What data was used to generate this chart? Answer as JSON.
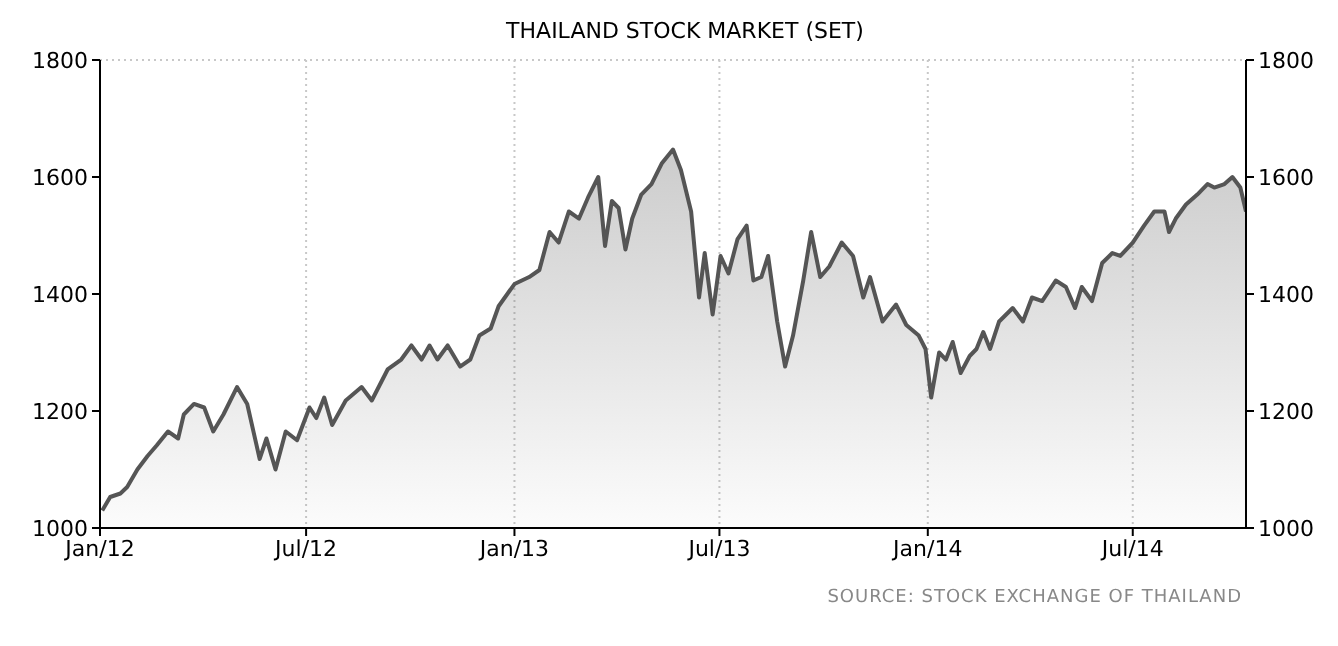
{
  "chart_data": {
    "type": "area",
    "title": "THAILAND STOCK MARKET (SET)",
    "annotations": [
      "SOURCE: STOCK EXCHANGE OF THAILAND"
    ],
    "series": [
      {
        "color": "#555555",
        "x": [
          "2012-01-03",
          "2012-01-10",
          "2012-01-19",
          "2012-01-25",
          "2012-02-03",
          "2012-02-12",
          "2012-02-20",
          "2012-03-01",
          "2012-03-10",
          "2012-03-15",
          "2012-03-24",
          "2012-04-02",
          "2012-04-10",
          "2012-04-19",
          "2012-05-01",
          "2012-05-10",
          "2012-05-21",
          "2012-05-27",
          "2012-06-04",
          "2012-06-13",
          "2012-06-23",
          "2012-07-04",
          "2012-07-10",
          "2012-07-17",
          "2012-07-24",
          "2012-08-05",
          "2012-08-19",
          "2012-08-28",
          "2012-09-11",
          "2012-09-23",
          "2012-10-02",
          "2012-10-11",
          "2012-10-18",
          "2012-10-25",
          "2012-11-03",
          "2012-11-14",
          "2012-11-23",
          "2012-12-01",
          "2012-12-11",
          "2012-12-18",
          "2013-01-01",
          "2013-01-14",
          "2013-01-23",
          "2013-02-01",
          "2013-02-09",
          "2013-02-18",
          "2013-02-27",
          "2013-03-07",
          "2013-03-16",
          "2013-03-22",
          "2013-03-28",
          "2013-04-03",
          "2013-04-09",
          "2013-04-15",
          "2013-04-23",
          "2013-05-02",
          "2013-05-11",
          "2013-05-21",
          "2013-05-28",
          "2013-06-06",
          "2013-06-13",
          "2013-06-18",
          "2013-06-25",
          "2013-07-02",
          "2013-07-09",
          "2013-07-17",
          "2013-07-25",
          "2013-07-31",
          "2013-08-07",
          "2013-08-13",
          "2013-08-21",
          "2013-08-28",
          "2013-09-04",
          "2013-09-13",
          "2013-09-20",
          "2013-09-28",
          "2013-10-06",
          "2013-10-17",
          "2013-10-27",
          "2013-11-05",
          "2013-11-11",
          "2013-11-22",
          "2013-12-04",
          "2013-12-13",
          "2013-12-24",
          "2013-12-30",
          "2014-01-04",
          "2014-01-11",
          "2014-01-17",
          "2014-01-23",
          "2014-01-30",
          "2014-02-07",
          "2014-02-13",
          "2014-02-19",
          "2014-02-25",
          "2014-03-05",
          "2014-03-17",
          "2014-03-26",
          "2014-04-03",
          "2014-04-12",
          "2014-04-24",
          "2014-05-03",
          "2014-05-11",
          "2014-05-17",
          "2014-05-26",
          "2014-06-04",
          "2014-06-13",
          "2014-06-20",
          "2014-07-01",
          "2014-07-11",
          "2014-07-20",
          "2014-07-29",
          "2014-08-02",
          "2014-08-08",
          "2014-08-17",
          "2014-08-27",
          "2014-09-05",
          "2014-09-11",
          "2014-09-20",
          "2014-09-27",
          "2014-10-04",
          "2014-10-09"
        ],
        "values": [
          1030,
          1053,
          1059,
          1070,
          1100,
          1123,
          1141,
          1165,
          1153,
          1194,
          1212,
          1206,
          1165,
          1194,
          1241,
          1212,
          1118,
          1153,
          1100,
          1165,
          1150,
          1206,
          1188,
          1223,
          1176,
          1218,
          1241,
          1218,
          1271,
          1288,
          1312,
          1288,
          1312,
          1288,
          1312,
          1276,
          1288,
          1329,
          1341,
          1379,
          1417,
          1429,
          1441,
          1506,
          1488,
          1541,
          1529,
          1565,
          1600,
          1482,
          1559,
          1547,
          1476,
          1529,
          1570,
          1588,
          1623,
          1647,
          1612,
          1541,
          1394,
          1470,
          1365,
          1465,
          1435,
          1494,
          1517,
          1423,
          1429,
          1465,
          1353,
          1276,
          1329,
          1423,
          1506,
          1429,
          1447,
          1488,
          1465,
          1394,
          1429,
          1353,
          1382,
          1347,
          1329,
          1306,
          1223,
          1300,
          1288,
          1318,
          1265,
          1294,
          1306,
          1335,
          1306,
          1353,
          1376,
          1353,
          1394,
          1388,
          1423,
          1412,
          1376,
          1412,
          1388,
          1453,
          1470,
          1465,
          1488,
          1517,
          1541,
          1541,
          1506,
          1529,
          1553,
          1570,
          1588,
          1582,
          1588,
          1600,
          1582,
          1541
        ]
      }
    ],
    "xlim": [
      "2012-01-01",
      "2014-10-09"
    ],
    "xticks": [
      {
        "value": "2012-01-01",
        "label": "Jan/12"
      },
      {
        "value": "2012-07-01",
        "label": "Jul/12"
      },
      {
        "value": "2013-01-01",
        "label": "Jan/13"
      },
      {
        "value": "2013-07-01",
        "label": "Jul/13"
      },
      {
        "value": "2014-01-01",
        "label": "Jan/14"
      },
      {
        "value": "2014-07-01",
        "label": "Jul/14"
      }
    ],
    "ylim": [
      1000,
      1800
    ],
    "yticks": [
      1000,
      1200,
      1400,
      1600,
      1800
    ],
    "y2lim": [
      1000,
      1800
    ],
    "y2ticks": [
      1000,
      1200,
      1400,
      1600,
      1800
    ],
    "grid": true,
    "legend": false,
    "marker": "none",
    "line_style": "solid"
  }
}
